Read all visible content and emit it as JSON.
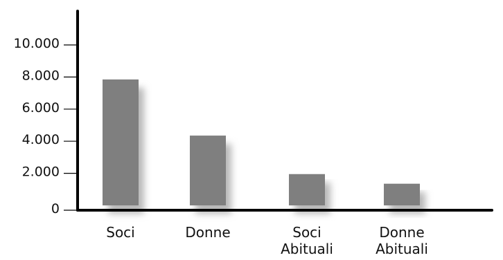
{
  "chart_data": {
    "type": "bar",
    "categories": [
      [
        "Soci"
      ],
      [
        "Donne"
      ],
      [
        "Soci",
        "Abituali"
      ],
      [
        "Donne",
        "Abituali"
      ]
    ],
    "values": [
      7850,
      4350,
      1950,
      1350
    ],
    "ylim": [
      0,
      10000
    ],
    "yticks": [
      {
        "value": 0,
        "label": "0"
      },
      {
        "value": 2000,
        "label": "2.000"
      },
      {
        "value": 4000,
        "label": "4.000"
      },
      {
        "value": 6000,
        "label": "6.000"
      },
      {
        "value": 8000,
        "label": "8.000"
      },
      {
        "value": 10000,
        "label": "10.000"
      }
    ],
    "grid": false,
    "bar_color": "#7f7f7f",
    "shadow_color": "#b8b8b8",
    "axis_color": "#000000"
  }
}
